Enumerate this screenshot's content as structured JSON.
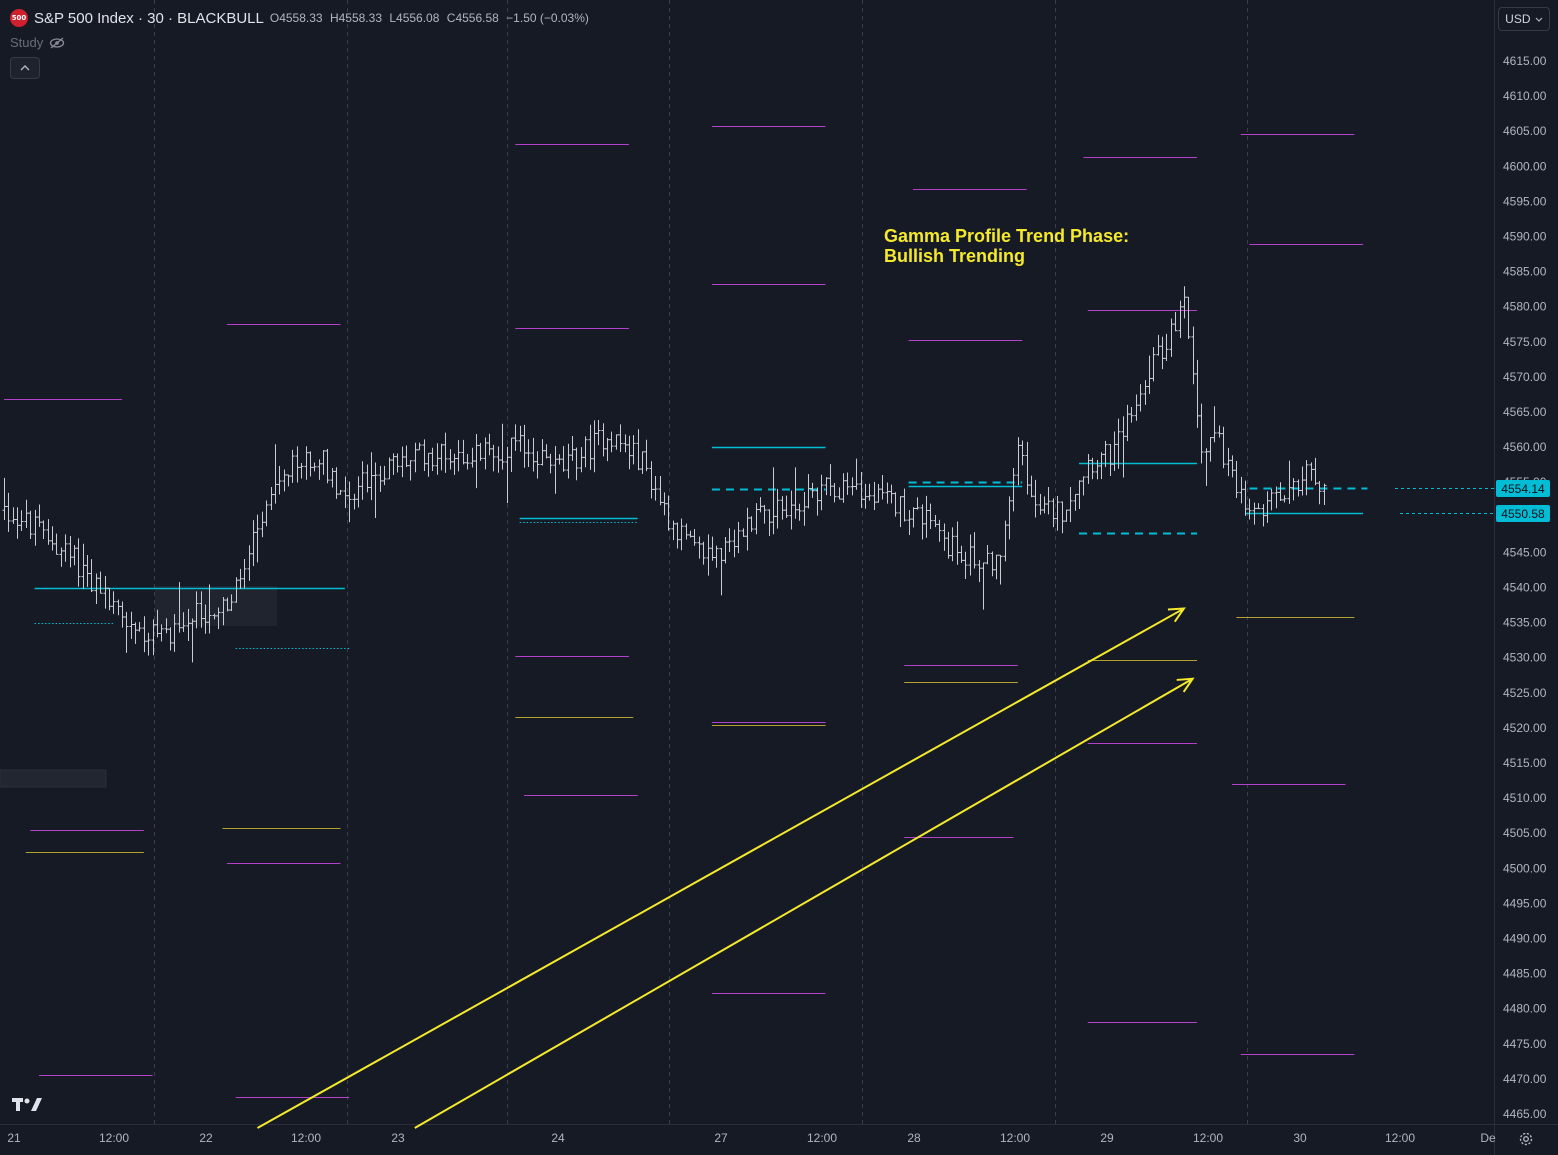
{
  "header": {
    "badge": "500",
    "symbol": "S&P 500 Index · 30 · BLACKBULL",
    "ohlc": [
      {
        "key": "O",
        "value": "4558.33"
      },
      {
        "key": "H",
        "value": "4558.33"
      },
      {
        "key": "L",
        "value": "4556.08"
      },
      {
        "key": "C",
        "value": "4556.58"
      }
    ],
    "change": "−1.50 (−0.03%)",
    "study_label": "Study",
    "collapse_icon": "chevron-up-icon"
  },
  "currency_selector": {
    "value": "USD"
  },
  "annotation": {
    "line1": "Gamma Profile Trend Phase:",
    "line2": "Bullish Trending"
  },
  "price_tags": [
    {
      "value": "4554.14",
      "price": 4554.14
    },
    {
      "value": "4550.58",
      "price": 4550.58
    }
  ],
  "colors": {
    "background": "#161a25",
    "grid": "#3a3e4a",
    "candle": "#c9ccd4",
    "magenta_level": "#b43fc9",
    "cyan_level": "#00bcd4",
    "gold_level": "#b5a22e",
    "arrow": "#f5e92c"
  },
  "chart_data": {
    "type": "bar",
    "symbol": "S&P 500 Index",
    "interval": "30",
    "y_axis": {
      "ticks": [
        "4615.00",
        "4610.00",
        "4605.00",
        "4600.00",
        "4595.00",
        "4590.00",
        "4585.00",
        "4580.00",
        "4575.00",
        "4570.00",
        "4565.00",
        "4560.00",
        "4555.00",
        "4550.00",
        "4545.00",
        "4540.00",
        "4535.00",
        "4530.00",
        "4525.00",
        "4520.00",
        "4515.00",
        "4510.00",
        "4505.00",
        "4500.00",
        "4495.00",
        "4490.00",
        "4485.00",
        "4480.00",
        "4475.00",
        "4470.00",
        "4465.00"
      ],
      "range": [
        4463.0,
        4619.0
      ]
    },
    "x_axis": {
      "ticks": [
        "21",
        "12:00",
        "22",
        "12:00",
        "23",
        "24",
        "27",
        "12:00",
        "28",
        "12:00",
        "29",
        "12:00",
        "30",
        "12:00",
        "De"
      ]
    },
    "price_path": [
      {
        "i": 0,
        "p": 4551
      },
      {
        "i": 8,
        "p": 4548
      },
      {
        "i": 16,
        "p": 4544
      },
      {
        "i": 24,
        "p": 4538
      },
      {
        "i": 30,
        "p": 4534
      },
      {
        "i": 36,
        "p": 4533
      },
      {
        "i": 44,
        "p": 4536
      },
      {
        "i": 52,
        "p": 4538
      },
      {
        "i": 60,
        "p": 4551
      },
      {
        "i": 66,
        "p": 4557
      },
      {
        "i": 72,
        "p": 4559
      },
      {
        "i": 78,
        "p": 4553
      },
      {
        "i": 84,
        "p": 4556
      },
      {
        "i": 96,
        "p": 4559
      },
      {
        "i": 108,
        "p": 4559
      },
      {
        "i": 118,
        "p": 4560
      },
      {
        "i": 128,
        "p": 4557
      },
      {
        "i": 138,
        "p": 4562
      },
      {
        "i": 146,
        "p": 4558
      },
      {
        "i": 152,
        "p": 4550
      },
      {
        "i": 158,
        "p": 4545
      },
      {
        "i": 166,
        "p": 4545
      },
      {
        "i": 172,
        "p": 4551
      },
      {
        "i": 180,
        "p": 4551
      },
      {
        "i": 188,
        "p": 4555
      },
      {
        "i": 196,
        "p": 4553
      },
      {
        "i": 204,
        "p": 4552
      },
      {
        "i": 210,
        "p": 4550
      },
      {
        "i": 216,
        "p": 4546
      },
      {
        "i": 222,
        "p": 4544
      },
      {
        "i": 228,
        "p": 4544
      },
      {
        "i": 232,
        "p": 4560
      },
      {
        "i": 236,
        "p": 4551
      },
      {
        "i": 242,
        "p": 4551
      },
      {
        "i": 248,
        "p": 4558
      },
      {
        "i": 254,
        "p": 4559
      },
      {
        "i": 260,
        "p": 4569
      },
      {
        "i": 266,
        "p": 4575
      },
      {
        "i": 270,
        "p": 4580
      },
      {
        "i": 274,
        "p": 4560
      },
      {
        "i": 278,
        "p": 4561
      },
      {
        "i": 282,
        "p": 4553
      },
      {
        "i": 286,
        "p": 4550
      },
      {
        "i": 292,
        "p": 4553
      },
      {
        "i": 298,
        "p": 4556
      },
      {
        "i": 302,
        "p": 4555
      }
    ],
    "levels": [
      {
        "color": "magenta",
        "price": 4566.9,
        "from": 0,
        "to": 27
      },
      {
        "color": "cyan",
        "price": 4540.0,
        "from": 7,
        "to": 78
      },
      {
        "color": "cyan",
        "price": 4535.0,
        "from": 7,
        "to": 25,
        "style": "dotted"
      },
      {
        "color": "magenta",
        "price": 4505.5,
        "from": 6,
        "to": 32
      },
      {
        "color": "gold",
        "price": 4502.3,
        "from": 5,
        "to": 32
      },
      {
        "color": "magenta",
        "price": 4470.6,
        "from": 8,
        "to": 34
      },
      {
        "color": "magenta",
        "price": 4577.6,
        "from": 51,
        "to": 77
      },
      {
        "color": "gold",
        "price": 4505.7,
        "from": 50,
        "to": 77
      },
      {
        "color": "magenta",
        "price": 4500.7,
        "from": 51,
        "to": 77
      },
      {
        "color": "cyan",
        "price": 4531.4,
        "from": 53,
        "to": 79,
        "style": "dotted"
      },
      {
        "color": "magenta",
        "price": 4467.4,
        "from": 53,
        "to": 79
      },
      {
        "color": "magenta",
        "price": 4603.2,
        "from": 117,
        "to": 143
      },
      {
        "color": "magenta",
        "price": 4576.9,
        "from": 117,
        "to": 143
      },
      {
        "color": "cyan",
        "price": 4549.9,
        "from": 118,
        "to": 145
      },
      {
        "color": "cyan",
        "price": 4549.4,
        "from": 118,
        "to": 145,
        "style": "dotted"
      },
      {
        "color": "magenta",
        "price": 4530.2,
        "from": 117,
        "to": 143
      },
      {
        "color": "gold",
        "price": 4521.6,
        "from": 117,
        "to": 144
      },
      {
        "color": "magenta",
        "price": 4510.5,
        "from": 119,
        "to": 145
      },
      {
        "color": "magenta",
        "price": 4605.8,
        "from": 162,
        "to": 188
      },
      {
        "color": "magenta",
        "price": 4583.3,
        "from": 162,
        "to": 188
      },
      {
        "color": "cyan",
        "price": 4560.0,
        "from": 162,
        "to": 188
      },
      {
        "color": "cyan",
        "price": 4554.0,
        "from": 162,
        "to": 188,
        "style": "dashed"
      },
      {
        "color": "magenta",
        "price": 4520.8,
        "from": 162,
        "to": 188
      },
      {
        "color": "gold",
        "price": 4520.4,
        "from": 162,
        "to": 188
      },
      {
        "color": "magenta",
        "price": 4482.2,
        "from": 162,
        "to": 188
      },
      {
        "color": "magenta",
        "price": 4596.8,
        "from": 208,
        "to": 234
      },
      {
        "color": "magenta",
        "price": 4575.3,
        "from": 207,
        "to": 233
      },
      {
        "color": "cyan",
        "price": 4555.0,
        "from": 207,
        "to": 233,
        "style": "dashed"
      },
      {
        "color": "cyan",
        "price": 4554.4,
        "from": 207,
        "to": 233
      },
      {
        "color": "magenta",
        "price": 4529.0,
        "from": 206,
        "to": 232
      },
      {
        "color": "gold",
        "price": 4526.6,
        "from": 206,
        "to": 232
      },
      {
        "color": "magenta",
        "price": 4504.4,
        "from": 206,
        "to": 231
      },
      {
        "color": "magenta",
        "price": 4601.3,
        "from": 247,
        "to": 273
      },
      {
        "color": "magenta",
        "price": 4579.6,
        "from": 248,
        "to": 273
      },
      {
        "color": "cyan",
        "price": 4557.7,
        "from": 246,
        "to": 273
      },
      {
        "color": "cyan",
        "price": 4547.8,
        "from": 246,
        "to": 273,
        "style": "dashed"
      },
      {
        "color": "gold",
        "price": 4529.7,
        "from": 248,
        "to": 273
      },
      {
        "color": "magenta",
        "price": 4517.8,
        "from": 248,
        "to": 273
      },
      {
        "color": "magenta",
        "price": 4478.1,
        "from": 248,
        "to": 273
      },
      {
        "color": "magenta",
        "price": 4604.6,
        "from": 283,
        "to": 309
      },
      {
        "color": "magenta",
        "price": 4588.9,
        "from": 285,
        "to": 311
      },
      {
        "color": "cyan",
        "price": 4554.14,
        "from": 285,
        "to": 312,
        "style": "dashed"
      },
      {
        "color": "cyan",
        "price": 4550.58,
        "from": 284,
        "to": 311
      },
      {
        "color": "gold",
        "price": 4535.8,
        "from": 282,
        "to": 309
      },
      {
        "color": "magenta",
        "price": 4512.0,
        "from": 281,
        "to": 307
      },
      {
        "color": "magenta",
        "price": 4473.5,
        "from": 283,
        "to": 309
      }
    ],
    "arrows": [
      {
        "from": {
          "i": 58,
          "p": 4463
        },
        "to": {
          "i": 270,
          "p": 4537
        }
      },
      {
        "from": {
          "i": 94,
          "p": 4463
        },
        "to": {
          "i": 272,
          "p": 4527
        }
      }
    ]
  }
}
